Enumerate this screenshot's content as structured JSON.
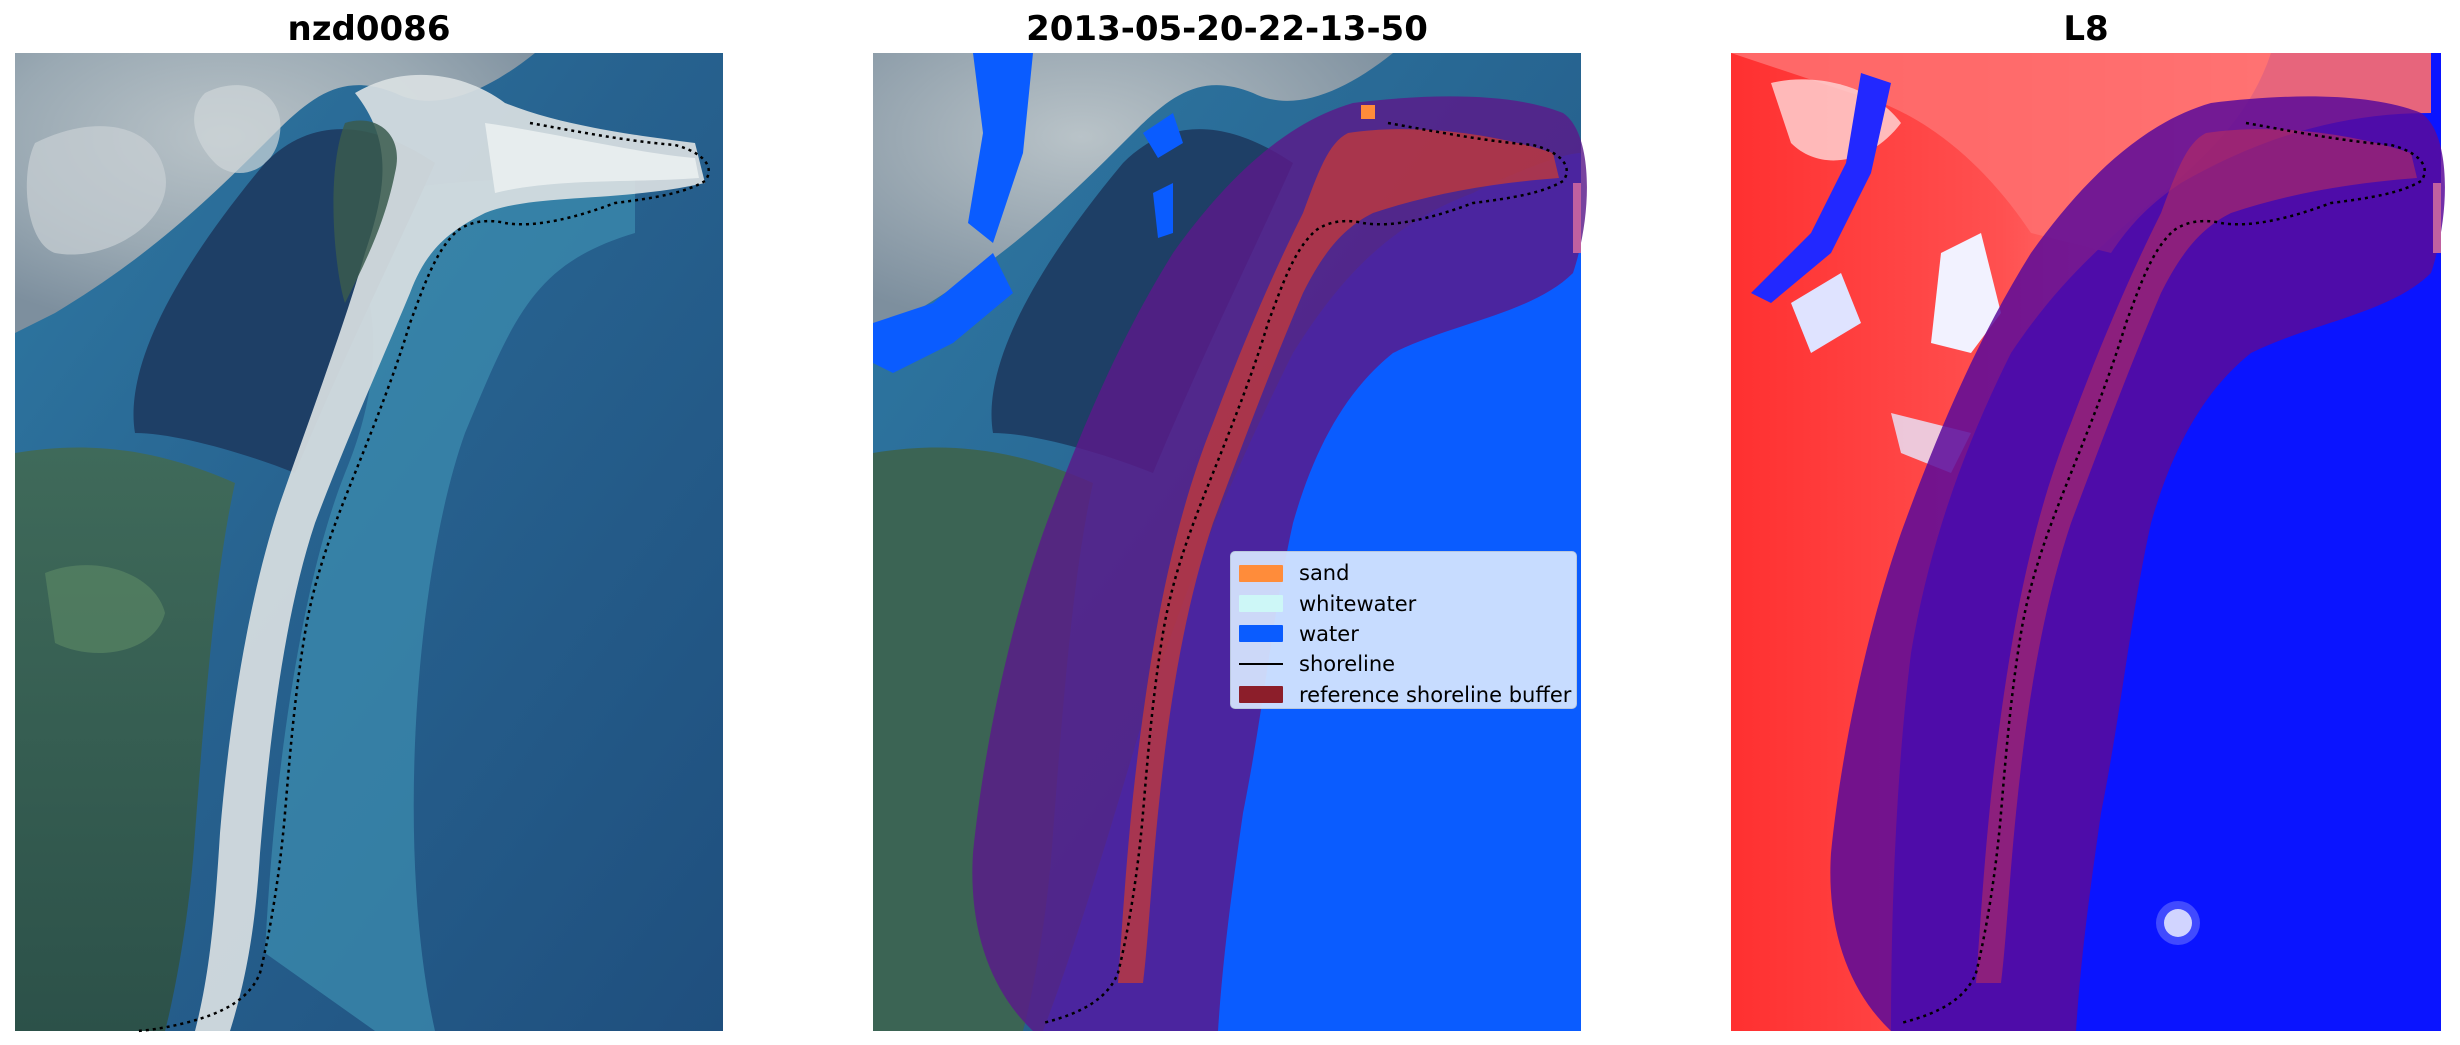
{
  "panels": [
    {
      "title": "nzd0086"
    },
    {
      "title": "2013-05-20-22-13-50"
    },
    {
      "title": "L8"
    }
  ],
  "legend": {
    "items": [
      {
        "label": "sand",
        "kind": "swatch",
        "color": "#ff8c3a"
      },
      {
        "label": "whitewater",
        "kind": "swatch",
        "color": "#cdf7f7"
      },
      {
        "label": "water",
        "kind": "swatch",
        "color": "#0a5cff"
      },
      {
        "label": "shoreline",
        "kind": "line",
        "color": "#000000"
      },
      {
        "label": "reference shoreline buffer",
        "kind": "swatch",
        "color": "#8c1e2a"
      }
    ]
  },
  "colors": {
    "water_class": "#0a5cff",
    "buffer_overlay": "#5a1a8a",
    "sand_class": "#c23a3a",
    "index_high": "#ff2d2d",
    "index_low": "#0a14ff",
    "shoreline": "#000000"
  }
}
